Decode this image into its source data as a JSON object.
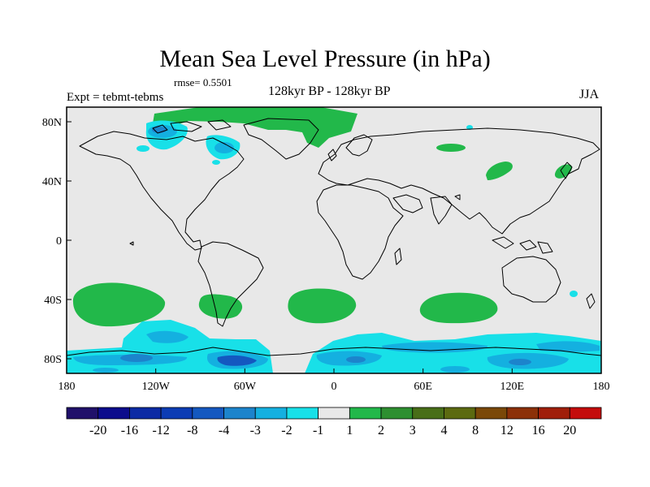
{
  "title": "Mean Sea Level Pressure (in hPa)",
  "rmse_label": "rmse= 0.5501",
  "experiment_label": "Expt = tebmt-tebms",
  "period_label": "128kyr BP - 128kyr BP",
  "season_label": "JJA",
  "y_axis": {
    "ticks": [
      "80N",
      "40N",
      "0",
      "40S",
      "80S"
    ]
  },
  "x_axis": {
    "ticks": [
      "180",
      "120W",
      "60W",
      "0",
      "60E",
      "120E",
      "180"
    ]
  },
  "colorbar": {
    "labels": [
      "-20",
      "-16",
      "-12",
      "-8",
      "-4",
      "-3",
      "-2",
      "-1",
      "1",
      "2",
      "3",
      "4",
      "8",
      "12",
      "16",
      "20"
    ],
    "colors": [
      "#20106a",
      "#0c0c8c",
      "#0c2aa4",
      "#0c3cb4",
      "#1458c0",
      "#1c84cc",
      "#14b0e0",
      "#18e0e8",
      "#e8e8e8",
      "#22b84a",
      "#2d8f30",
      "#486e18",
      "#5c6a10",
      "#7a4808",
      "#8c3008",
      "#a01e0a",
      "#c40c0c"
    ]
  },
  "colors": {
    "background": "#e8e8e8",
    "positive": "#22b84a",
    "negative_light": "#18e0e8",
    "negative_mid": "#14b0e0",
    "negative_dark": "#1458c0"
  }
}
